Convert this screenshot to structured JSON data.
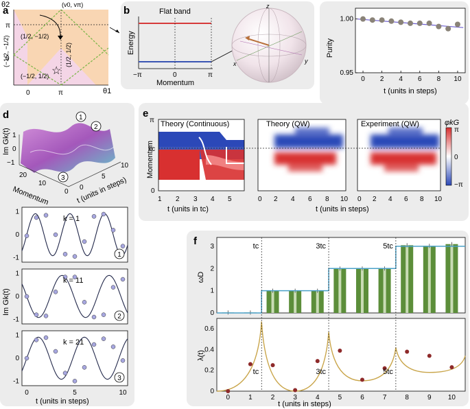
{
  "panels": {
    "a": {
      "label": "a",
      "y_axis": "θ2",
      "x_axis": "θ1",
      "corner": "(v0, vπ)",
      "ticks_x": [
        "0",
        "π"
      ],
      "ticks_y": [
        "π",
        "0"
      ],
      "regions": [
        "(1/2, −1/2)",
        "(−1/2, −1/2)",
        "(−1/2, 1/2)",
        "(1/2, 1/2)"
      ],
      "colors": {
        "orange": "#f9d6b3",
        "pink": "#f4d5e6",
        "green": "#7fb64b"
      }
    },
    "b": {
      "label": "b",
      "title": "Flat band",
      "ylabel": "Energy",
      "xlabel": "Momentum",
      "ticks_x": [
        "−π",
        "0",
        "π"
      ],
      "sphere_axes": [
        "z",
        "x",
        "y"
      ],
      "colors": {
        "upper": "#d63a3a",
        "lower": "#3a55b4",
        "arrow": "#b8703a"
      }
    },
    "c": {
      "label": "c"
    },
    "d": {
      "label": "d",
      "surface_zlabel": "Im Gk(t)",
      "surface_zticks": [
        "1",
        "0",
        "−1"
      ],
      "surface_xlabel": "Momentum",
      "surface_xticks": [
        "20",
        "10",
        "0"
      ],
      "surface_ylabel": "t (units in steps)",
      "surface_yticks": [
        "0",
        "5",
        "10"
      ],
      "markers": [
        "1",
        "2",
        "3"
      ],
      "ylabel": "Im Gk(t)",
      "colors": {
        "surface": "#b060c0",
        "fit": "#22284a",
        "point": "#a7a7e0"
      }
    },
    "e": {
      "label": "e",
      "titles": [
        "Theory (Continuous)",
        "Theory (QW)",
        "Experiment (QW)"
      ],
      "ylabel": "Momentum",
      "yticks": [
        "π",
        "kc",
        "0"
      ],
      "xlabel_left": "t (units in tc)",
      "xlabel_right": "t (units in steps)",
      "colorbar_title": "φkG",
      "colorbar_ticks": [
        "π",
        "0",
        "−π"
      ],
      "colors": {
        "pos": "#d83030",
        "neg": "#2b48b8"
      }
    },
    "f": {
      "label": "f",
      "tc_labels": [
        "tc",
        "3tc",
        "5tc"
      ],
      "colors": {
        "bar": "#5c8e3a",
        "line": "#4aa0c8",
        "lambda_line": "#c9a54a",
        "lambda_point": "#8e2a2a"
      }
    }
  },
  "chart_data": [
    {
      "type": "scatter",
      "panel": "c",
      "xlabel": "t (units in steps)",
      "ylabel": "Purity",
      "xlim": [
        -0.8,
        10.8
      ],
      "ylim": [
        0.95,
        1.01
      ],
      "xticks": [
        0,
        2,
        4,
        6,
        8,
        10
      ],
      "yticks": [
        0.95,
        1.0
      ],
      "ytick_labels": [
        "0.95",
        "1.00"
      ],
      "x": [
        0,
        1,
        2,
        3,
        4,
        5,
        6,
        7,
        8,
        9,
        10
      ],
      "values": [
        1.0,
        0.999,
        0.999,
        0.998,
        0.997,
        0.996,
        0.996,
        0.996,
        0.993,
        0.991,
        0.995
      ],
      "fit": [
        [
          -0.6,
          1.0
        ],
        [
          10.6,
          0.992
        ]
      ]
    },
    {
      "type": "line",
      "panel": "d",
      "subplots": [
        {
          "label": "k = 1",
          "marker": "1",
          "period": 3.6,
          "x": [
            0,
            1,
            2,
            3,
            4,
            5,
            6,
            7,
            8,
            9,
            10
          ],
          "values": [
            -0.05,
            0.75,
            0.85,
            0.0,
            -0.85,
            -0.95,
            -0.3,
            0.8,
            0.9,
            0.2,
            -0.5
          ]
        },
        {
          "label": "k = 11",
          "marker": "2",
          "period": 4.9,
          "x": [
            0,
            1,
            2,
            3,
            4,
            5,
            6,
            7,
            8,
            9,
            10
          ],
          "values": [
            0.0,
            -0.8,
            -0.85,
            0.2,
            0.85,
            0.85,
            -0.25,
            -0.9,
            -0.8,
            0.4,
            0.75
          ]
        },
        {
          "label": "k = 21",
          "marker": "3",
          "period": 4.8,
          "x": [
            0,
            1,
            2,
            3,
            4,
            5,
            6,
            7,
            8,
            9,
            10
          ],
          "values": [
            0.0,
            0.8,
            0.9,
            0.3,
            -0.65,
            -1.0,
            -0.4,
            0.6,
            0.85,
            0.5,
            -0.1
          ]
        }
      ],
      "xlabel": "t (units in steps)",
      "xticks": [
        0,
        5,
        10
      ],
      "yticks": [
        -1,
        0,
        1
      ]
    },
    {
      "type": "bar",
      "panel": "f",
      "ylabel": "ωD",
      "ylim": [
        0,
        3.4
      ],
      "yticks": [
        0,
        1,
        2,
        3
      ],
      "categories": [
        0,
        1,
        2,
        3,
        4,
        5,
        6,
        7,
        8,
        9,
        10
      ],
      "values": [
        0.02,
        0.02,
        1.0,
        1.0,
        1.0,
        2.0,
        2.0,
        2.0,
        3.05,
        3.02,
        3.1
      ],
      "step_line": [
        [
          -0.5,
          0
        ],
        [
          1.5,
          0
        ],
        [
          1.5,
          1
        ],
        [
          4.5,
          1
        ],
        [
          4.5,
          2
        ],
        [
          7.5,
          2
        ],
        [
          7.5,
          3
        ],
        [
          10.6,
          3
        ]
      ],
      "tc_positions": [
        1.5,
        4.5,
        7.5
      ]
    },
    {
      "type": "line",
      "panel": "f",
      "ylabel": "λ(t)",
      "xlabel": "t (units in steps)",
      "xlim": [
        -0.5,
        10.6
      ],
      "ylim": [
        0,
        0.7
      ],
      "xticks": [
        0,
        1,
        2,
        3,
        4,
        5,
        6,
        7,
        8,
        9,
        10
      ],
      "yticks": [
        0,
        0.2,
        0.4,
        0.6
      ],
      "x": [
        0,
        1,
        2,
        3,
        4,
        5,
        6,
        7,
        8,
        9,
        10
      ],
      "values": [
        0.0,
        0.26,
        0.25,
        0.01,
        0.29,
        0.39,
        0.11,
        0.22,
        0.38,
        0.34,
        0.23
      ],
      "curve": [
        [
          -0.5,
          0
        ],
        [
          1.5,
          0.67
        ],
        [
          3.0,
          0.0
        ],
        [
          4.5,
          0.57
        ],
        [
          6.0,
          0.1
        ],
        [
          7.5,
          0.42
        ],
        [
          9.0,
          0.18
        ],
        [
          10.6,
          0.34
        ]
      ],
      "tc_positions": [
        1.5,
        4.5,
        7.5
      ]
    }
  ]
}
